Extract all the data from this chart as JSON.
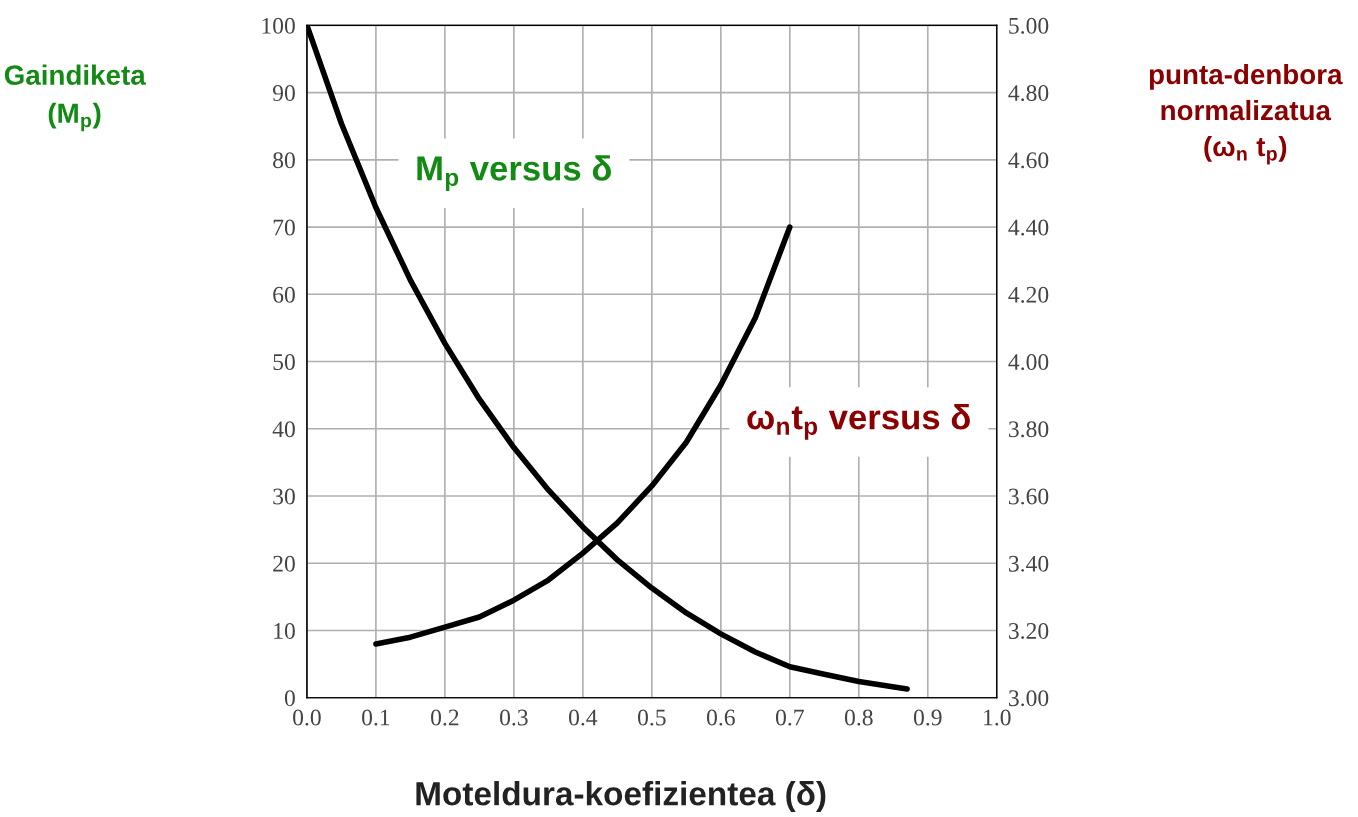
{
  "chart_data": {
    "type": "line",
    "xlabel": "Moteldura-koefizientea (δ)",
    "ylabel": "Gaindiketa\n(M$_{p}$)",
    "y2label": "punta-denbora\nnormalizatua\n(ω$_{n}$ t$_{p}$)",
    "series": [
      {
        "name": "M$_{p}$ versus δ",
        "color": "#000000",
        "x": [
          0.0,
          0.05,
          0.1,
          0.15,
          0.2,
          0.25,
          0.3,
          0.35,
          0.4,
          0.45,
          0.5,
          0.55,
          0.6,
          0.65,
          0.7,
          0.75,
          0.8,
          0.87
        ],
        "values": [
          100,
          85.4,
          72.9,
          62.1,
          52.7,
          44.4,
          37.2,
          30.9,
          25.4,
          20.5,
          16.3,
          12.6,
          9.5,
          6.8,
          4.6,
          3.5,
          2.4,
          1.3
        ]
      },
      {
        "name": "ω$_{n}$t$_{p}$ versus δ",
        "color": "#000000",
        "axis": "y2",
        "x": [
          0.1,
          0.15,
          0.2,
          0.25,
          0.3,
          0.35,
          0.4,
          0.45,
          0.5,
          0.55,
          0.6,
          0.65,
          0.7
        ],
        "values": [
          3.16,
          3.18,
          3.21,
          3.24,
          3.29,
          3.35,
          3.43,
          3.52,
          3.63,
          3.76,
          3.93,
          4.13,
          4.4
        ]
      }
    ],
    "xlim": [
      0,
      1
    ],
    "xticks": [
      {
        "value": 0,
        "label": "0.0"
      },
      0.1,
      0.2,
      0.3,
      0.4,
      0.5,
      0.6,
      0.7,
      0.8,
      0.9,
      {
        "value": 1,
        "label": "1.0"
      }
    ],
    "ylim": [
      0,
      100
    ],
    "yticks": [
      0,
      10,
      20,
      30,
      40,
      50,
      60,
      70,
      80,
      90,
      100
    ],
    "y2lim": [
      3,
      5
    ],
    "y2ticks": [
      {
        "value": 3,
        "label": "3.00"
      },
      {
        "value": 3.2,
        "label": "3.20"
      },
      {
        "value": 3.4,
        "label": "3.40"
      },
      {
        "value": 3.6,
        "label": "3.60"
      },
      {
        "value": 3.8,
        "label": "3.80"
      },
      {
        "value": 4,
        "label": "4.00"
      },
      {
        "value": 4.2,
        "label": "4.20"
      },
      {
        "value": 4.4,
        "label": "4.40"
      },
      {
        "value": 4.6,
        "label": "4.60"
      },
      {
        "value": 4.8,
        "label": "4.80"
      },
      {
        "value": 5,
        "label": "5.00"
      }
    ],
    "grid": true,
    "legend": false,
    "marker": "none",
    "line_style": "solid"
  }
}
